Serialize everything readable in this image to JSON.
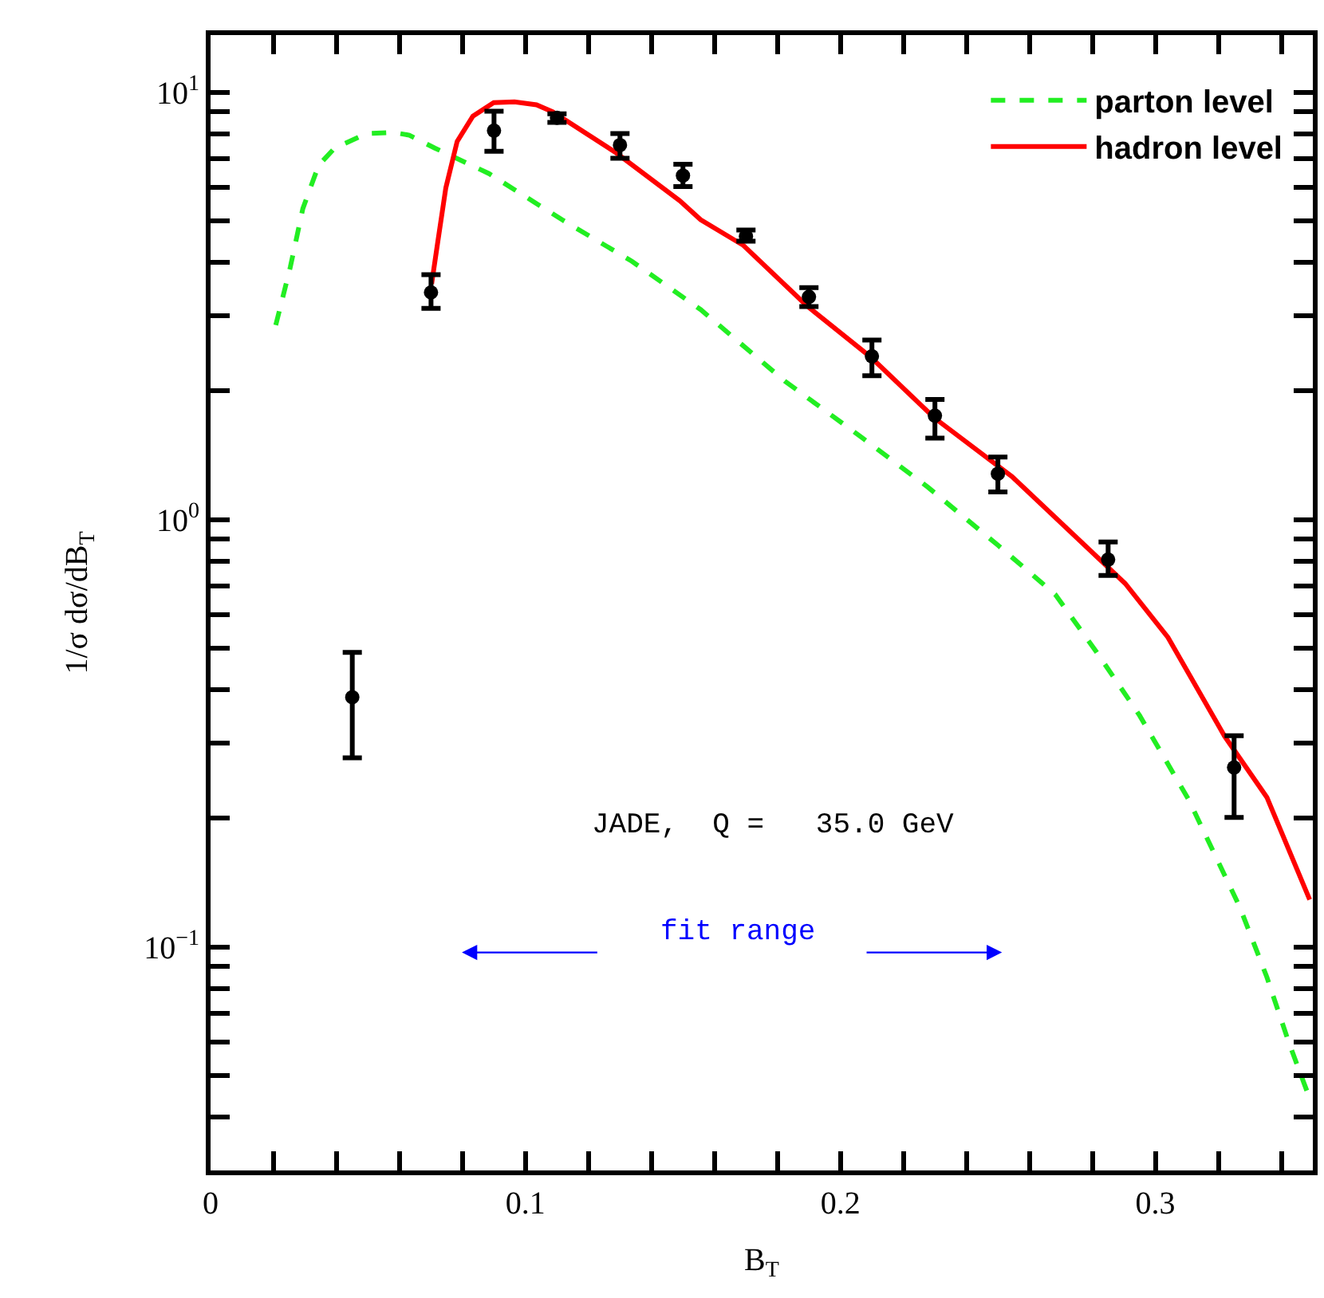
{
  "chart_data": {
    "type": "line",
    "xlabel": "B$_{T}$",
    "ylabel": "1/σ dσ/dB$_{T}$",
    "log": "y",
    "xlim": [
      0,
      0.35
    ],
    "xticks": [
      0,
      {
        "value": 0.02,
        "label": null
      },
      {
        "value": 0.04,
        "label": null
      },
      {
        "value": 0.06,
        "label": null
      },
      {
        "value": 0.08,
        "label": null
      },
      0.1,
      {
        "value": 0.12,
        "label": null
      },
      {
        "value": 0.14,
        "label": null
      },
      {
        "value": 0.16,
        "label": null
      },
      {
        "value": 0.18,
        "label": null
      },
      0.2,
      {
        "value": 0.22,
        "label": null
      },
      {
        "value": 0.24,
        "label": null
      },
      {
        "value": 0.26,
        "label": null
      },
      {
        "value": 0.28,
        "label": null
      },
      0.3,
      {
        "value": 0.32,
        "label": null
      },
      {
        "value": 0.34,
        "label": null
      }
    ],
    "ylim": [
      0.03,
      13.6
    ],
    "yticks": [
      {
        "value": 0.04,
        "label": null
      },
      {
        "value": 0.05,
        "label": null
      },
      {
        "value": 0.06,
        "label": null
      },
      {
        "value": 0.07,
        "label": null
      },
      {
        "value": 0.08,
        "label": null
      },
      {
        "value": 0.09,
        "label": null
      },
      {
        "value": 0.1,
        "label": "10$^{−1}$"
      },
      {
        "value": 0.2,
        "label": null
      },
      {
        "value": 0.3,
        "label": null
      },
      {
        "value": 0.4,
        "label": null
      },
      {
        "value": 0.5,
        "label": null
      },
      {
        "value": 0.6,
        "label": null
      },
      {
        "value": 0.7,
        "label": null
      },
      {
        "value": 0.8,
        "label": null
      },
      {
        "value": 0.9,
        "label": null
      },
      {
        "value": 1,
        "label": "10$^{0}$"
      },
      {
        "value": 2,
        "label": null
      },
      {
        "value": 3,
        "label": null
      },
      {
        "value": 4,
        "label": null
      },
      {
        "value": 5,
        "label": null
      },
      {
        "value": 6,
        "label": null
      },
      {
        "value": 7,
        "label": null
      },
      {
        "value": 8,
        "label": null
      },
      {
        "value": 9,
        "label": null
      },
      {
        "value": 10,
        "label": "10$^{1}$"
      }
    ],
    "legend": "top right",
    "series": [
      {
        "name": "parton level",
        "line_style": "dashed",
        "color": "#22ee22",
        "x": [
          0.0207,
          0.0253,
          0.0293,
          0.0343,
          0.0394,
          0.0495,
          0.0581,
          0.0631,
          0.0712,
          0.0884,
          0.1116,
          0.1338,
          0.1556,
          0.1823,
          0.2071,
          0.2278,
          0.25,
          0.2682,
          0.2813,
          0.295,
          0.3106,
          0.3268,
          0.3354,
          0.3424,
          0.349
        ],
        "values": [
          2.85,
          3.89,
          5.34,
          6.74,
          7.4,
          8.0,
          8.05,
          7.93,
          7.4,
          6.45,
          5.03,
          4.02,
          3.1,
          2.11,
          1.55,
          1.19,
          0.871,
          0.668,
          0.49,
          0.348,
          0.221,
          0.124,
          0.085,
          0.0597,
          0.0442
        ]
      },
      {
        "name": "hadron level",
        "line_style": "solid",
        "color": "#ff0000",
        "x": [
          0.0702,
          0.0722,
          0.0747,
          0.0783,
          0.0833,
          0.0899,
          0.0965,
          0.1035,
          0.1086,
          0.1288,
          0.149,
          0.1556,
          0.1692,
          0.1894,
          0.2096,
          0.2298,
          0.2545,
          0.2904,
          0.304,
          0.322,
          0.3354,
          0.349
        ],
        "values": [
          3.56,
          4.49,
          5.97,
          7.67,
          8.79,
          9.45,
          9.49,
          9.34,
          9.0,
          7.21,
          5.57,
          5.03,
          4.38,
          3.16,
          2.4,
          1.73,
          1.26,
          0.709,
          0.53,
          0.311,
          0.224,
          0.129
        ]
      },
      {
        "type": "scatter",
        "marker": "circle",
        "color": "#000000",
        "x": [
          0.045,
          0.07,
          0.09,
          0.11,
          0.13,
          0.15,
          0.17,
          0.19,
          0.21,
          0.23,
          0.25,
          0.285,
          0.325
        ],
        "values": [
          0.384,
          3.4,
          8.13,
          8.71,
          7.52,
          6.38,
          4.6,
          3.32,
          2.41,
          1.75,
          1.28,
          0.806,
          0.263
        ],
        "errors": [
          [
            0.277,
            0.489
          ],
          [
            3.12,
            3.74
          ],
          [
            7.27,
            9.02
          ],
          [
            8.5,
            8.9
          ],
          [
            7.0,
            8.0
          ],
          [
            6.01,
            6.78
          ],
          [
            4.48,
            4.76
          ],
          [
            3.15,
            3.49
          ],
          [
            2.17,
            2.63
          ],
          [
            1.55,
            1.91
          ],
          [
            1.16,
            1.4
          ],
          [
            0.74,
            0.886
          ],
          [
            0.201,
            0.312
          ]
        ]
      }
    ],
    "annotations": [
      "JADE,  Q =   35.0 GeV",
      "fit range"
    ]
  }
}
